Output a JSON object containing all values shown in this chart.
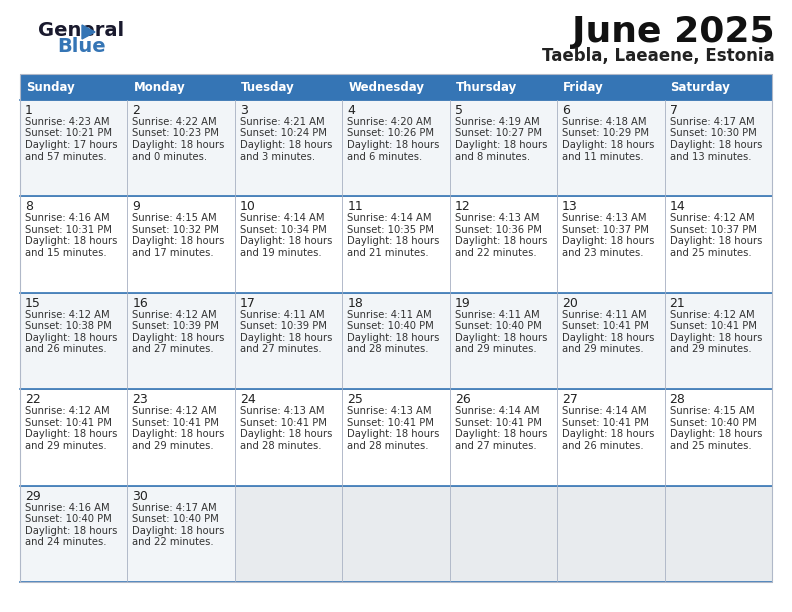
{
  "title": "June 2025",
  "subtitle": "Taebla, Laeaene, Estonia",
  "header_color": "#3575b5",
  "header_text_color": "#ffffff",
  "bg_color": "#ffffff",
  "row_colors": [
    "#f2f5f8",
    "#ffffff",
    "#f2f5f8",
    "#ffffff",
    "#f2f5f8"
  ],
  "days_of_week": [
    "Sunday",
    "Monday",
    "Tuesday",
    "Wednesday",
    "Thursday",
    "Friday",
    "Saturday"
  ],
  "cell_data": [
    [
      {
        "day": 1,
        "sunrise": "4:23 AM",
        "sunset": "10:21 PM",
        "daylight": "17 hours",
        "daylight2": "and 57 minutes."
      },
      {
        "day": 2,
        "sunrise": "4:22 AM",
        "sunset": "10:23 PM",
        "daylight": "18 hours",
        "daylight2": "and 0 minutes."
      },
      {
        "day": 3,
        "sunrise": "4:21 AM",
        "sunset": "10:24 PM",
        "daylight": "18 hours",
        "daylight2": "and 3 minutes."
      },
      {
        "day": 4,
        "sunrise": "4:20 AM",
        "sunset": "10:26 PM",
        "daylight": "18 hours",
        "daylight2": "and 6 minutes."
      },
      {
        "day": 5,
        "sunrise": "4:19 AM",
        "sunset": "10:27 PM",
        "daylight": "18 hours",
        "daylight2": "and 8 minutes."
      },
      {
        "day": 6,
        "sunrise": "4:18 AM",
        "sunset": "10:29 PM",
        "daylight": "18 hours",
        "daylight2": "and 11 minutes."
      },
      {
        "day": 7,
        "sunrise": "4:17 AM",
        "sunset": "10:30 PM",
        "daylight": "18 hours",
        "daylight2": "and 13 minutes."
      }
    ],
    [
      {
        "day": 8,
        "sunrise": "4:16 AM",
        "sunset": "10:31 PM",
        "daylight": "18 hours",
        "daylight2": "and 15 minutes."
      },
      {
        "day": 9,
        "sunrise": "4:15 AM",
        "sunset": "10:32 PM",
        "daylight": "18 hours",
        "daylight2": "and 17 minutes."
      },
      {
        "day": 10,
        "sunrise": "4:14 AM",
        "sunset": "10:34 PM",
        "daylight": "18 hours",
        "daylight2": "and 19 minutes."
      },
      {
        "day": 11,
        "sunrise": "4:14 AM",
        "sunset": "10:35 PM",
        "daylight": "18 hours",
        "daylight2": "and 21 minutes."
      },
      {
        "day": 12,
        "sunrise": "4:13 AM",
        "sunset": "10:36 PM",
        "daylight": "18 hours",
        "daylight2": "and 22 minutes."
      },
      {
        "day": 13,
        "sunrise": "4:13 AM",
        "sunset": "10:37 PM",
        "daylight": "18 hours",
        "daylight2": "and 23 minutes."
      },
      {
        "day": 14,
        "sunrise": "4:12 AM",
        "sunset": "10:37 PM",
        "daylight": "18 hours",
        "daylight2": "and 25 minutes."
      }
    ],
    [
      {
        "day": 15,
        "sunrise": "4:12 AM",
        "sunset": "10:38 PM",
        "daylight": "18 hours",
        "daylight2": "and 26 minutes."
      },
      {
        "day": 16,
        "sunrise": "4:12 AM",
        "sunset": "10:39 PM",
        "daylight": "18 hours",
        "daylight2": "and 27 minutes."
      },
      {
        "day": 17,
        "sunrise": "4:11 AM",
        "sunset": "10:39 PM",
        "daylight": "18 hours",
        "daylight2": "and 27 minutes."
      },
      {
        "day": 18,
        "sunrise": "4:11 AM",
        "sunset": "10:40 PM",
        "daylight": "18 hours",
        "daylight2": "and 28 minutes."
      },
      {
        "day": 19,
        "sunrise": "4:11 AM",
        "sunset": "10:40 PM",
        "daylight": "18 hours",
        "daylight2": "and 29 minutes."
      },
      {
        "day": 20,
        "sunrise": "4:11 AM",
        "sunset": "10:41 PM",
        "daylight": "18 hours",
        "daylight2": "and 29 minutes."
      },
      {
        "day": 21,
        "sunrise": "4:12 AM",
        "sunset": "10:41 PM",
        "daylight": "18 hours",
        "daylight2": "and 29 minutes."
      }
    ],
    [
      {
        "day": 22,
        "sunrise": "4:12 AM",
        "sunset": "10:41 PM",
        "daylight": "18 hours",
        "daylight2": "and 29 minutes."
      },
      {
        "day": 23,
        "sunrise": "4:12 AM",
        "sunset": "10:41 PM",
        "daylight": "18 hours",
        "daylight2": "and 29 minutes."
      },
      {
        "day": 24,
        "sunrise": "4:13 AM",
        "sunset": "10:41 PM",
        "daylight": "18 hours",
        "daylight2": "and 28 minutes."
      },
      {
        "day": 25,
        "sunrise": "4:13 AM",
        "sunset": "10:41 PM",
        "daylight": "18 hours",
        "daylight2": "and 28 minutes."
      },
      {
        "day": 26,
        "sunrise": "4:14 AM",
        "sunset": "10:41 PM",
        "daylight": "18 hours",
        "daylight2": "and 27 minutes."
      },
      {
        "day": 27,
        "sunrise": "4:14 AM",
        "sunset": "10:41 PM",
        "daylight": "18 hours",
        "daylight2": "and 26 minutes."
      },
      {
        "day": 28,
        "sunrise": "4:15 AM",
        "sunset": "10:40 PM",
        "daylight": "18 hours",
        "daylight2": "and 25 minutes."
      }
    ],
    [
      {
        "day": 29,
        "sunrise": "4:16 AM",
        "sunset": "10:40 PM",
        "daylight": "18 hours",
        "daylight2": "and 24 minutes."
      },
      {
        "day": 30,
        "sunrise": "4:17 AM",
        "sunset": "10:40 PM",
        "daylight": "18 hours",
        "daylight2": "and 22 minutes."
      },
      null,
      null,
      null,
      null,
      null
    ]
  ],
  "line_color": "#b0b8c8",
  "week_line_color": "#3575b5",
  "day_number_color": "#222222",
  "cell_text_color": "#333333",
  "empty_cell_color": "#e8ebee",
  "logo_general_color": "#1a1a2e",
  "logo_blue_color": "#3575b5",
  "title_color": "#111111",
  "subtitle_color": "#222222"
}
